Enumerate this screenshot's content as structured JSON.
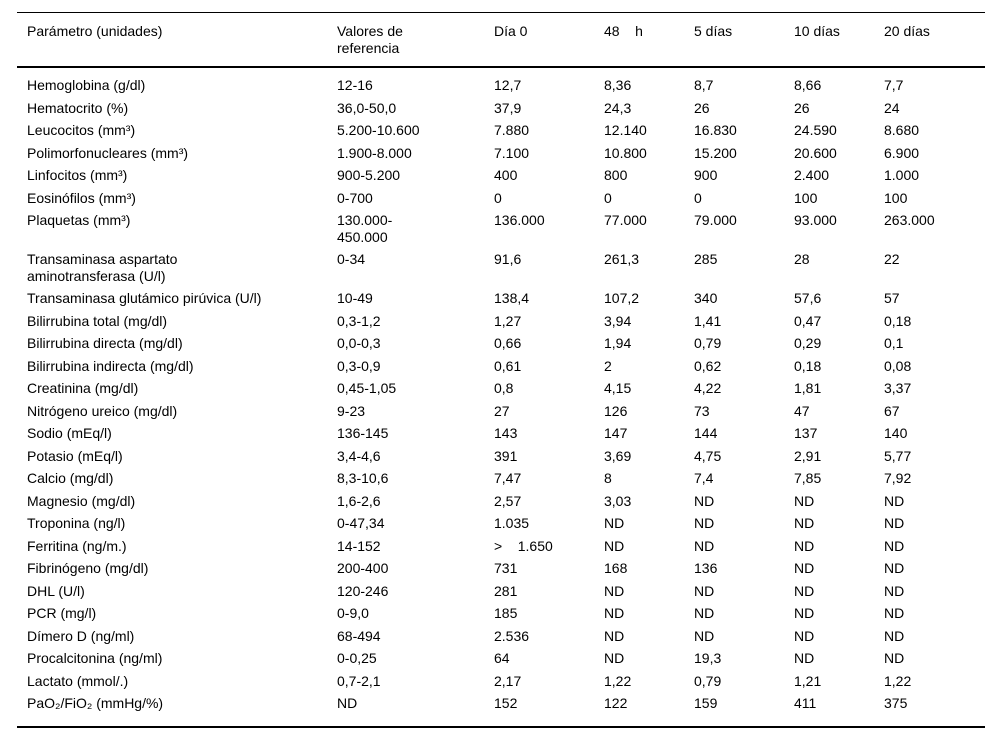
{
  "table": {
    "name": "Tabla de parámetros de laboratorio",
    "text_color": "#000000",
    "background_color": "#ffffff",
    "rule_color": "#000000",
    "columns": [
      {
        "label": "Parámetro (unidades)"
      },
      {
        "label": "Valores de\nreferencia"
      },
      {
        "label": "Día 0"
      },
      {
        "label": "48    h"
      },
      {
        "label": "5 días"
      },
      {
        "label": "10 días"
      },
      {
        "label": "20 días"
      }
    ],
    "rows": [
      [
        "Hemoglobina (g/dl)",
        "12-16",
        "12,7",
        "8,36",
        "8,7",
        "8,66",
        "7,7"
      ],
      [
        "Hematocrito (%)",
        "36,0-50,0",
        "37,9",
        "24,3",
        "26",
        "26",
        "24"
      ],
      [
        "Leucocitos (mm³)",
        "5.200-10.600",
        "7.880",
        "12.140",
        "16.830",
        "24.590",
        "8.680"
      ],
      [
        "Polimorfonucleares (mm³)",
        "1.900-8.000",
        "7.100",
        "10.800",
        "15.200",
        "20.600",
        "6.900"
      ],
      [
        "Linfocitos (mm³)",
        "900-5.200",
        "400",
        "800",
        "900",
        "2.400",
        "1.000"
      ],
      [
        "Eosinófilos (mm³)",
        "0-700",
        "0",
        "0",
        "0",
        "100",
        "100"
      ],
      [
        "Plaquetas (mm³)",
        "130.000-\n450.000",
        "136.000",
        "77.000",
        "79.000",
        "93.000",
        "263.000"
      ],
      [
        "Transaminasa aspartato\naminotransferasa (U/l)",
        "0-34",
        "91,6",
        "261,3",
        "285",
        "28",
        "22"
      ],
      [
        "Transaminasa glutámico pirúvica (U/l)",
        "10-49",
        "138,4",
        "107,2",
        "340",
        "57,6",
        "57"
      ],
      [
        "Bilirrubina total (mg/dl)",
        "0,3-1,2",
        "1,27",
        "3,94",
        "1,41",
        "0,47",
        "0,18"
      ],
      [
        "Bilirrubina directa (mg/dl)",
        "0,0-0,3",
        "0,66",
        "1,94",
        "0,79",
        "0,29",
        "0,1"
      ],
      [
        "Bilirrubina indirecta (mg/dl)",
        "0,3-0,9",
        "0,61",
        "2",
        "0,62",
        "0,18",
        "0,08"
      ],
      [
        "Creatinina (mg/dl)",
        "0,45-1,05",
        "0,8",
        "4,15",
        "4,22",
        "1,81",
        "3,37"
      ],
      [
        "Nitrógeno ureico (mg/dl)",
        "9-23",
        "27",
        "126",
        "73",
        "47",
        "67"
      ],
      [
        "Sodio (mEq/l)",
        "136-145",
        "143",
        "147",
        "144",
        "137",
        "140"
      ],
      [
        "Potasio (mEq/l)",
        "3,4-4,6",
        "391",
        "3,69",
        "4,75",
        "2,91",
        "5,77"
      ],
      [
        "Calcio (mg/dl)",
        "8,3-10,6",
        "7,47",
        "8",
        "7,4",
        "7,85",
        "7,92"
      ],
      [
        "Magnesio (mg/dl)",
        "1,6-2,6",
        "2,57",
        "3,03",
        "ND",
        "ND",
        "ND"
      ],
      [
        "Troponina (ng/l)",
        "0-47,34",
        "1.035",
        "ND",
        "ND",
        "ND",
        "ND"
      ],
      [
        "Ferritina (ng/m.)",
        "14-152",
        ">    1.650",
        "ND",
        "ND",
        "ND",
        "ND"
      ],
      [
        "Fibrinógeno (mg/dl)",
        "200-400",
        "731",
        "168",
        "136",
        "ND",
        "ND"
      ],
      [
        "DHL (U/l)",
        "120-246",
        "281",
        "ND",
        "ND",
        "ND",
        "ND"
      ],
      [
        "PCR (mg/l)",
        "0-9,0",
        "185",
        "ND",
        "ND",
        "ND",
        "ND"
      ],
      [
        "Dímero D (ng/ml)",
        "68-494",
        "2.536",
        "ND",
        "ND",
        "ND",
        "ND"
      ],
      [
        "Procalcitonina (ng/ml)",
        "0-0,25",
        "64",
        "ND",
        "19,3",
        "ND",
        "ND"
      ],
      [
        "Lactato (mmol/.)",
        "0,7-2,1",
        "2,17",
        "1,22",
        "0,79",
        "1,21",
        "1,22"
      ],
      [
        "PaO₂/FiO₂ (mmHg/%)",
        "ND",
        "152",
        "122",
        "159",
        "411",
        "375"
      ]
    ]
  }
}
